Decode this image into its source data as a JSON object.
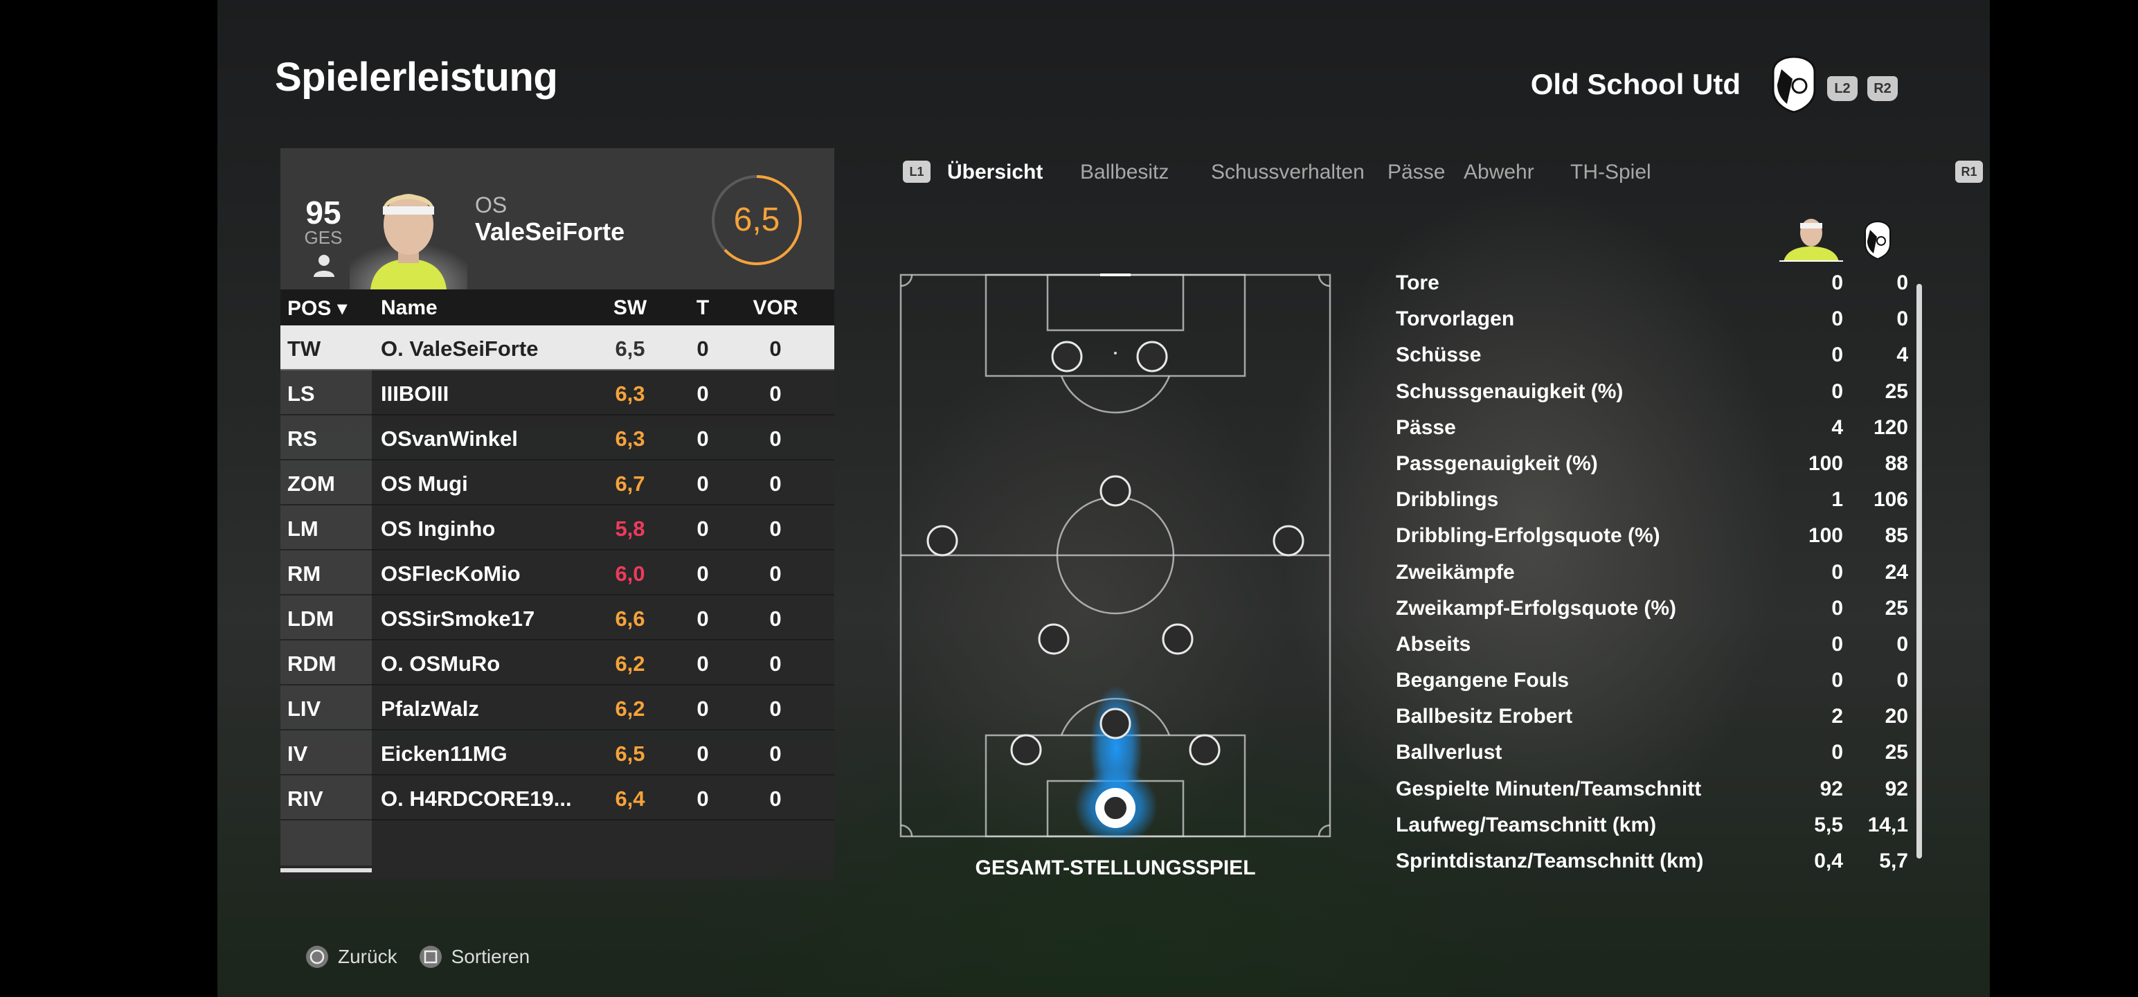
{
  "header": {
    "title": "Spielerleistung",
    "club_name": "Old School Utd",
    "l2": "L2",
    "r2": "R2"
  },
  "player": {
    "overall": "95",
    "overall_label": "GES",
    "position_short": "OS",
    "name": "ValeSeiForte",
    "rating": "6,5"
  },
  "table": {
    "headers": {
      "pos": "POS",
      "name": "Name",
      "sw": "SW",
      "t": "T",
      "vor": "VOR"
    },
    "rows": [
      {
        "pos": "TW",
        "name": "O. ValeSeiForte",
        "sw": "6,5",
        "t": "0",
        "vor": "0"
      },
      {
        "pos": "LS",
        "name": "IIIBOIII",
        "sw": "6,3",
        "t": "0",
        "vor": "0"
      },
      {
        "pos": "RS",
        "name": "OSvanWinkel",
        "sw": "6,3",
        "t": "0",
        "vor": "0"
      },
      {
        "pos": "ZOM",
        "name": "OS Mugi",
        "sw": "6,7",
        "t": "0",
        "vor": "0"
      },
      {
        "pos": "LM",
        "name": "OS Inginho",
        "sw": "5,8",
        "t": "0",
        "vor": "0"
      },
      {
        "pos": "RM",
        "name": "OSFlecKoMio",
        "sw": "6,0",
        "t": "0",
        "vor": "0"
      },
      {
        "pos": "LDM",
        "name": "OSSirSmoke17",
        "sw": "6,6",
        "t": "0",
        "vor": "0"
      },
      {
        "pos": "RDM",
        "name": "O. OSMuRo",
        "sw": "6,2",
        "t": "0",
        "vor": "0"
      },
      {
        "pos": "LIV",
        "name": "PfalzWalz",
        "sw": "6,2",
        "t": "0",
        "vor": "0"
      },
      {
        "pos": "IV",
        "name": "Eicken11MG",
        "sw": "6,5",
        "t": "0",
        "vor": "0"
      },
      {
        "pos": "RIV",
        "name": "O. H4RDCORE19...",
        "sw": "6,4",
        "t": "0",
        "vor": "0"
      }
    ]
  },
  "tabs": {
    "l1": "L1",
    "r1": "R1",
    "items": [
      "Übersicht",
      "Ballbesitz",
      "Schussverhalten",
      "Pässe",
      "Abwehr",
      "TH-Spiel"
    ]
  },
  "pitch": {
    "caption": "GESAMT-STELLUNGSSPIEL"
  },
  "stats": [
    {
      "label": "Tore",
      "player": "0",
      "team": "0"
    },
    {
      "label": "Torvorlagen",
      "player": "0",
      "team": "0"
    },
    {
      "label": "Schüsse",
      "player": "0",
      "team": "4"
    },
    {
      "label": "Schussgenauigkeit (%)",
      "player": "0",
      "team": "25"
    },
    {
      "label": "Pässe",
      "player": "4",
      "team": "120"
    },
    {
      "label": "Passgenauigkeit (%)",
      "player": "100",
      "team": "88"
    },
    {
      "label": "Dribblings",
      "player": "1",
      "team": "106"
    },
    {
      "label": "Dribbling-Erfolgsquote (%)",
      "player": "100",
      "team": "85"
    },
    {
      "label": "Zweikämpfe",
      "player": "0",
      "team": "24"
    },
    {
      "label": "Zweikampf-Erfolgsquote (%)",
      "player": "0",
      "team": "25"
    },
    {
      "label": "Abseits",
      "player": "0",
      "team": "0"
    },
    {
      "label": "Begangene Fouls",
      "player": "0",
      "team": "0"
    },
    {
      "label": "Ballbesitz Erobert",
      "player": "2",
      "team": "20"
    },
    {
      "label": "Ballverlust",
      "player": "0",
      "team": "25"
    },
    {
      "label": "Gespielte Minuten/Teamschnitt",
      "player": "92",
      "team": "92"
    },
    {
      "label": "Laufweg/Teamschnitt (km)",
      "player": "5,5",
      "team": "14,1"
    },
    {
      "label": "Sprintdistanz/Teamschnitt (km)",
      "player": "0,4",
      "team": "5,7"
    }
  ],
  "footer": {
    "back": "Zurück",
    "sort": "Sortieren"
  },
  "colors": {
    "accent_orange": "#f6a33a",
    "low_red": "#ef3b5c",
    "heat_blue": "#1e9bff"
  },
  "icons": {
    "user": "user-icon",
    "crest": "club-crest-icon",
    "circle_button": "circle-button-icon",
    "square_button": "square-button-icon"
  }
}
